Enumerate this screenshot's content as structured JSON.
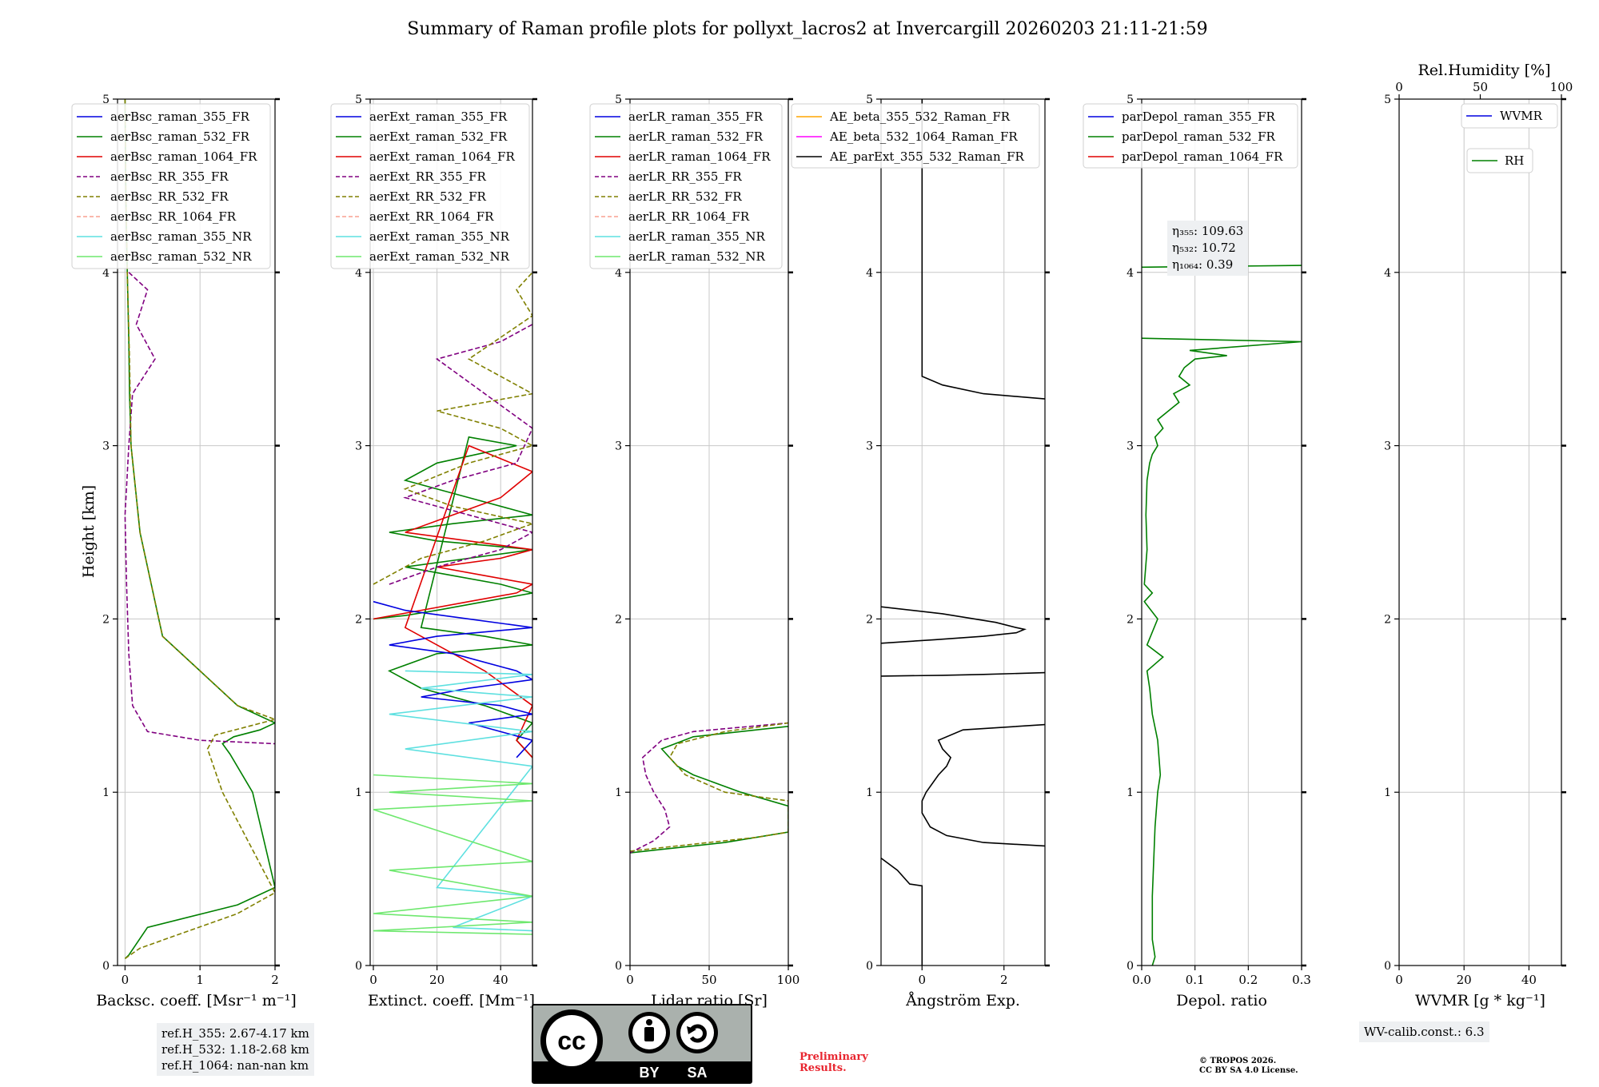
{
  "figure": {
    "title": "Summary of Raman profile plots for pollyxt_lacros2 at Invercargill 20260203 21:11-21:59",
    "ylabel": "Height [km]",
    "eta_labels": [
      "η₃₅₅: 109.63",
      "η₅₃₂: 10.72",
      "η₁₀₆₄: 0.39"
    ],
    "ref_heights": [
      "ref.H_355: 2.67-4.17 km",
      "ref.H_532: 1.18-2.68 km",
      "ref.H_1064: nan-nan km"
    ],
    "wv_calib": "WV-calib.const.: 6.3",
    "license_badge": {
      "left": "BY",
      "right": "SA",
      "cc": "cc"
    },
    "preliminary": [
      "Preliminary",
      "Results."
    ],
    "copyright": [
      "© TROPOS 2026.",
      "CC BY SA 4.0 License."
    ]
  },
  "chart_data": [
    {
      "type": "line",
      "xlabel": "Backsc. coeff. [Msr⁻¹ m⁻¹]",
      "xlim": [
        -0.1,
        2
      ],
      "xticks": [
        0,
        1,
        2
      ],
      "xtick_labels": [
        "0",
        "1",
        "2"
      ],
      "ylim": [
        0,
        5
      ],
      "yticks": [
        0,
        1,
        2,
        3,
        4,
        5
      ],
      "grid": true,
      "legend": [
        "aerBsc_raman_355_FR",
        "aerBsc_raman_532_FR",
        "aerBsc_raman_1064_FR",
        "aerBsc_RR_355_FR",
        "aerBsc_RR_532_FR",
        "aerBsc_RR_1064_FR",
        "aerBsc_raman_355_NR",
        "aerBsc_raman_532_NR"
      ],
      "legend_position": "top-left",
      "series": [
        {
          "name": "aerBsc_raman_532_FR",
          "color": "#008000",
          "dash": "solid",
          "x": [
            0.0,
            0.01,
            0.02,
            0.03,
            0.05,
            0.06,
            0.08,
            0.2,
            0.5,
            1.0,
            1.5,
            2.0,
            1.8,
            1.45,
            1.3,
            1.4,
            1.7,
            2.0,
            1.5,
            0.3,
            0.05,
            0.0
          ],
          "y": [
            5.0,
            4.5,
            4.2,
            4.0,
            3.6,
            3.3,
            3.0,
            2.5,
            1.9,
            1.7,
            1.5,
            1.4,
            1.36,
            1.32,
            1.28,
            1.22,
            1.0,
            0.45,
            0.35,
            0.22,
            0.06,
            0.04
          ]
        },
        {
          "name": "aerBsc_RR_355_FR",
          "color": "#800080",
          "dash": "dash",
          "x": [
            0.05,
            0.3,
            0.15,
            0.4,
            0.1,
            0.05,
            0.0,
            0.02,
            0.05,
            0.1,
            0.3,
            1.0,
            2.0
          ],
          "y": [
            4.0,
            3.9,
            3.7,
            3.5,
            3.3,
            3.0,
            2.6,
            2.2,
            1.8,
            1.5,
            1.35,
            1.3,
            1.28
          ]
        },
        {
          "name": "aerBsc_RR_532_FR",
          "color": "#808000",
          "dash": "dash",
          "x": [
            0.0,
            0.01,
            0.03,
            0.06,
            0.08,
            0.2,
            0.5,
            1.0,
            1.5,
            2.0,
            1.2,
            1.1,
            1.3,
            2.0,
            1.5,
            0.2,
            0.0
          ],
          "y": [
            5.0,
            4.5,
            4.0,
            3.5,
            3.0,
            2.5,
            1.9,
            1.7,
            1.5,
            1.42,
            1.33,
            1.25,
            1.0,
            0.42,
            0.3,
            0.1,
            0.04
          ]
        }
      ]
    },
    {
      "type": "line",
      "xlabel": "Extinct. coeff. [Mm⁻¹]",
      "xlim": [
        -1,
        50
      ],
      "xticks": [
        0,
        20,
        40
      ],
      "xtick_labels": [
        "0",
        "20",
        "40"
      ],
      "ylim": [
        0,
        5
      ],
      "yticks": [
        0,
        1,
        2,
        3,
        4,
        5
      ],
      "grid": true,
      "legend": [
        "aerExt_raman_355_FR",
        "aerExt_raman_532_FR",
        "aerExt_raman_1064_FR",
        "aerExt_RR_355_FR",
        "aerExt_RR_532_FR",
        "aerExt_RR_1064_FR",
        "aerExt_raman_355_NR",
        "aerExt_raman_532_NR"
      ],
      "legend_position": "top-left",
      "series": [
        {
          "name": "aerExt_raman_532_FR",
          "color": "#008000",
          "dash": "solid",
          "x": [
            0,
            10,
            20,
            35,
            50,
            40,
            25,
            10,
            30,
            50,
            20,
            5,
            25,
            50,
            30,
            10,
            20,
            45,
            30,
            15,
            35,
            50,
            20,
            5,
            15,
            35,
            50,
            45,
            50
          ],
          "y": [
            2.0,
            2.02,
            2.05,
            2.1,
            2.15,
            2.2,
            2.25,
            2.3,
            2.35,
            2.4,
            2.45,
            2.5,
            2.55,
            2.6,
            2.7,
            2.8,
            2.9,
            3.0,
            3.05,
            1.95,
            1.9,
            1.85,
            1.8,
            1.7,
            1.6,
            1.5,
            1.4,
            1.3,
            1.2
          ]
        },
        {
          "name": "aerExt_raman_1064_FR",
          "color": "#e00000",
          "dash": "solid",
          "x": [
            0,
            15,
            30,
            45,
            50,
            35,
            20,
            40,
            50,
            30,
            10,
            25,
            40,
            50,
            30,
            10,
            20,
            35,
            50,
            45,
            50
          ],
          "y": [
            2.0,
            2.05,
            2.1,
            2.15,
            2.2,
            2.25,
            2.3,
            2.35,
            2.4,
            2.45,
            2.5,
            2.6,
            2.7,
            2.85,
            3.0,
            1.95,
            1.85,
            1.7,
            1.5,
            1.3,
            1.2
          ]
        },
        {
          "name": "aerExt_raman_355_FR",
          "color": "#0000e0",
          "dash": "solid",
          "x": [
            0,
            10,
            30,
            50,
            20,
            5,
            25,
            45,
            50,
            30,
            15,
            40,
            50,
            30,
            50,
            45
          ],
          "y": [
            2.1,
            2.05,
            2.0,
            1.95,
            1.9,
            1.85,
            1.8,
            1.7,
            1.65,
            1.6,
            1.55,
            1.5,
            1.45,
            1.4,
            1.3,
            1.2
          ]
        },
        {
          "name": "aerExt_RR_355_FR",
          "color": "#800080",
          "dash": "dash",
          "x": [
            5,
            20,
            40,
            50,
            30,
            10,
            25,
            45,
            50,
            20,
            40,
            50
          ],
          "y": [
            2.2,
            2.3,
            2.4,
            2.5,
            2.6,
            2.7,
            2.8,
            2.9,
            3.1,
            3.5,
            3.6,
            3.7
          ]
        },
        {
          "name": "aerExt_RR_532_FR",
          "color": "#808000",
          "dash": "dash",
          "x": [
            0,
            15,
            35,
            50,
            25,
            10,
            30,
            50,
            40,
            20,
            50,
            30,
            50,
            45,
            50
          ],
          "y": [
            2.2,
            2.35,
            2.45,
            2.55,
            2.65,
            2.75,
            2.9,
            3.0,
            3.1,
            3.2,
            3.3,
            3.5,
            3.75,
            3.9,
            4.0
          ]
        },
        {
          "name": "aerExt_raman_355_NR",
          "color": "#5ee0e0",
          "dash": "solid",
          "x": [
            10,
            50,
            15,
            50,
            5,
            50,
            10,
            50,
            20,
            50,
            25,
            50
          ],
          "y": [
            1.7,
            1.68,
            1.6,
            1.55,
            1.45,
            1.35,
            1.25,
            1.15,
            0.45,
            0.4,
            0.22,
            0.2
          ]
        },
        {
          "name": "aerExt_raman_532_NR",
          "color": "#6ee86e",
          "dash": "solid",
          "x": [
            0,
            50,
            5,
            50,
            0,
            50,
            5,
            50,
            0,
            50,
            0,
            50
          ],
          "y": [
            1.1,
            1.05,
            1.0,
            0.95,
            0.9,
            0.6,
            0.55,
            0.4,
            0.3,
            0.25,
            0.2,
            0.18
          ]
        }
      ]
    },
    {
      "type": "line",
      "xlabel": "Lidar ratio [Sr]",
      "xlim": [
        0,
        100
      ],
      "xticks": [
        0,
        50,
        100
      ],
      "xtick_labels": [
        "0",
        "50",
        "100"
      ],
      "ylim": [
        0,
        5
      ],
      "yticks": [
        0,
        1,
        2,
        3,
        4,
        5
      ],
      "grid": true,
      "legend": [
        "aerLR_raman_355_FR",
        "aerLR_raman_532_FR",
        "aerLR_raman_1064_FR",
        "aerLR_RR_355_FR",
        "aerLR_RR_532_FR",
        "aerLR_RR_1064_FR",
        "aerLR_raman_355_NR",
        "aerLR_raman_532_NR"
      ],
      "legend_position": "top-left",
      "series": [
        {
          "name": "aerLR_raman_532_FR",
          "color": "#008000",
          "dash": "solid",
          "x": [
            0,
            20,
            40,
            60,
            80,
            100,
            100,
            70,
            40,
            30,
            20,
            40,
            70,
            100
          ],
          "y": [
            0.65,
            0.67,
            0.69,
            0.71,
            0.74,
            0.77,
            0.92,
            1.0,
            1.1,
            1.15,
            1.25,
            1.32,
            1.35,
            1.38
          ]
        },
        {
          "name": "aerLR_RR_355_FR",
          "color": "#800080",
          "dash": "dash",
          "x": [
            0,
            15,
            25,
            22,
            15,
            10,
            8,
            20,
            40,
            100
          ],
          "y": [
            0.65,
            0.72,
            0.8,
            0.9,
            1.0,
            1.1,
            1.2,
            1.3,
            1.35,
            1.4
          ]
        },
        {
          "name": "aerLR_RR_532_FR",
          "color": "#808000",
          "dash": "dash",
          "x": [
            0,
            40,
            80,
            100,
            100,
            60,
            35,
            25,
            30,
            60,
            100
          ],
          "y": [
            0.66,
            0.7,
            0.74,
            0.77,
            0.95,
            1.0,
            1.1,
            1.2,
            1.28,
            1.35,
            1.4
          ]
        }
      ]
    },
    {
      "type": "line",
      "xlabel": "Ångström Exp.",
      "xlim": [
        -1,
        3
      ],
      "xticks": [
        0,
        2
      ],
      "xtick_labels": [
        "0",
        "2"
      ],
      "ylim": [
        0,
        5
      ],
      "yticks": [
        0,
        1,
        2,
        3,
        4,
        5
      ],
      "grid": true,
      "legend": [
        "AE_beta_355_532_Raman_FR",
        "AE_beta_532_1064_Raman_FR",
        "AE_parExt_355_532_Raman_FR"
      ],
      "legend_position": "top-left",
      "series": [
        {
          "name": "AE_parExt_355_532_Raman_FR",
          "color": "#000000",
          "dash": "solid",
          "x": [
            0.0,
            0.0,
            -0.3,
            -0.6,
            -1.0
          ],
          "y": [
            0.0,
            0.46,
            0.47,
            0.55,
            0.62
          ]
        },
        {
          "name": "AE_parExt_355_532_Raman_FR",
          "color": "#000000",
          "dash": "solid",
          "x": [
            3.0,
            1.5,
            0.6,
            0.2,
            0.0,
            0.0,
            0.1,
            0.4,
            0.6,
            0.7,
            0.5,
            0.4,
            1.0,
            3.0
          ],
          "y": [
            0.69,
            0.71,
            0.75,
            0.8,
            0.88,
            0.95,
            1.0,
            1.1,
            1.15,
            1.2,
            1.25,
            1.3,
            1.36,
            1.39
          ]
        },
        {
          "name": "AE_parExt_355_532_Raman_FR",
          "color": "#000000",
          "dash": "solid",
          "x": [
            -1.0,
            0.5,
            1.5,
            3.0
          ],
          "y": [
            1.67,
            1.675,
            1.68,
            1.69
          ]
        },
        {
          "name": "AE_parExt_355_532_Raman_FR",
          "color": "#000000",
          "dash": "solid",
          "x": [
            -1.0,
            0.3,
            1.5,
            2.3,
            2.5,
            2.3,
            1.8,
            0.5,
            -1.0
          ],
          "y": [
            1.86,
            1.88,
            1.9,
            1.92,
            1.94,
            1.95,
            1.98,
            2.03,
            2.07
          ]
        },
        {
          "name": "AE_parExt_355_532_Raman_FR",
          "color": "#000000",
          "dash": "solid",
          "x": [
            3.0,
            1.5,
            0.5,
            0.0,
            0.0
          ],
          "y": [
            3.27,
            3.3,
            3.35,
            3.4,
            5.0
          ]
        }
      ]
    },
    {
      "type": "line",
      "xlabel": "Depol. ratio",
      "xlim": [
        0,
        0.3
      ],
      "xticks": [
        0,
        0.1,
        0.2,
        0.3
      ],
      "xtick_labels": [
        "0.0",
        "0.1",
        "0.2",
        "0.3"
      ],
      "ylim": [
        0,
        5
      ],
      "yticks": [
        0,
        1,
        2,
        3,
        4,
        5
      ],
      "grid": true,
      "legend": [
        "parDepol_raman_355_FR",
        "parDepol_raman_532_FR",
        "parDepol_raman_1064_FR"
      ],
      "legend_position": "top-left",
      "series": [
        {
          "name": "parDepol_raman_532_FR",
          "color": "#008000",
          "dash": "solid",
          "x": [
            0.02,
            0.025,
            0.02,
            0.02,
            0.025,
            0.03,
            0.035,
            0.03,
            0.02,
            0.015,
            0.01,
            0.04,
            0.01,
            0.03,
            0.005,
            0.02,
            0.005,
            0.01,
            0.008,
            0.01,
            0.015,
            0.02,
            0.03,
            0.025,
            0.04,
            0.03,
            0.05,
            0.07,
            0.06,
            0.09,
            0.07,
            0.08,
            0.1,
            0.16,
            0.09,
            0.3,
            0.0
          ],
          "y": [
            0.0,
            0.05,
            0.15,
            0.4,
            0.8,
            1.0,
            1.1,
            1.3,
            1.45,
            1.6,
            1.7,
            1.78,
            1.85,
            2.0,
            2.1,
            2.15,
            2.2,
            2.4,
            2.6,
            2.8,
            2.9,
            2.95,
            3.0,
            3.05,
            3.1,
            3.15,
            3.2,
            3.25,
            3.3,
            3.35,
            3.4,
            3.45,
            3.5,
            3.52,
            3.55,
            3.6,
            3.62
          ]
        },
        {
          "name": "parDepol_raman_532_FR",
          "color": "#008000",
          "dash": "solid",
          "x": [
            0.0,
            0.3
          ],
          "y": [
            4.03,
            4.04
          ]
        }
      ]
    },
    {
      "type": "line",
      "xlabel": "WVMR [g * kg⁻¹]",
      "xlim": [
        0,
        50
      ],
      "xticks": [
        0,
        20,
        40
      ],
      "xtick_labels": [
        "0",
        "20",
        "40"
      ],
      "ylim": [
        0,
        5
      ],
      "yticks": [
        0,
        1,
        2,
        3,
        4,
        5
      ],
      "grid": true,
      "top_axis_label": "Rel.Humidity [%]",
      "top_xticks": [
        0,
        50,
        100
      ],
      "top_xtick_labels": [
        "0",
        "50",
        "100"
      ],
      "legend": [
        "WVMR",
        "RH"
      ],
      "legend_position": "top-right",
      "series": []
    }
  ]
}
